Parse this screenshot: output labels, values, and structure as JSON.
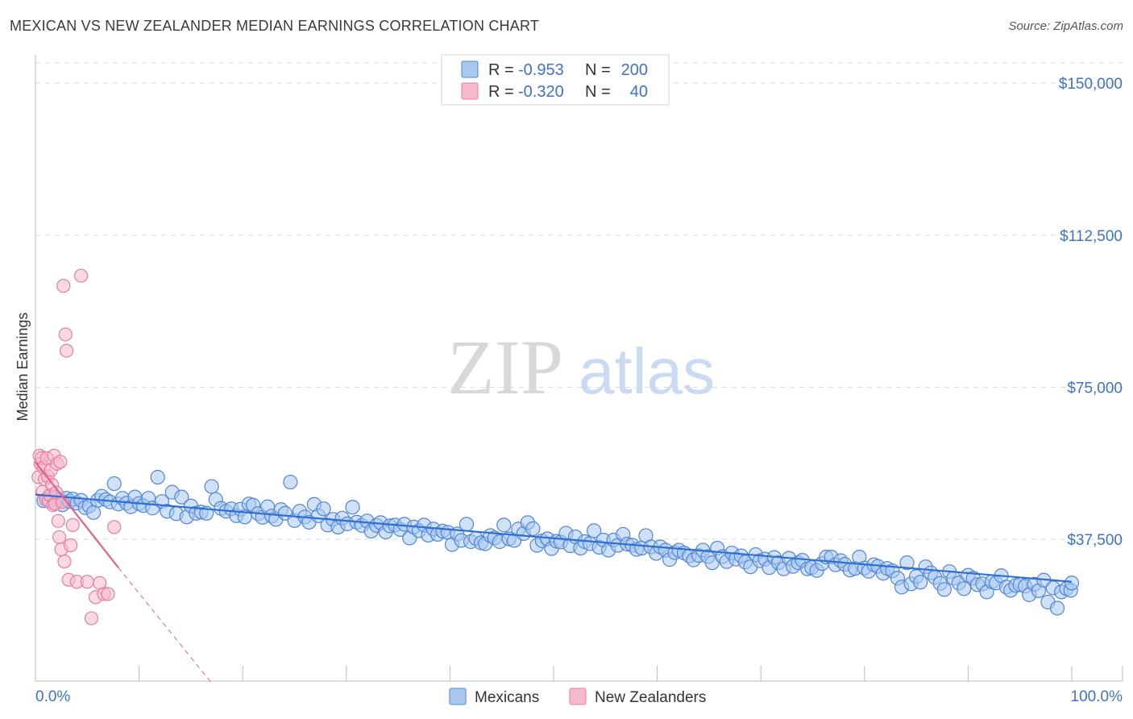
{
  "title": "MEXICAN VS NEW ZEALANDER MEDIAN EARNINGS CORRELATION CHART",
  "source": "Source: ZipAtlas.com",
  "watermark": {
    "zip": "ZIP",
    "atlas": "atlas"
  },
  "colors": {
    "mexicans_fill": "#a9c8f0",
    "mexicans_stroke": "#4f86d6",
    "mexicans_line": "#2f6fd0",
    "nz_fill": "#f7b9cc",
    "nz_stroke": "#e47ea0",
    "nz_line": "#e0628d",
    "grid": "#d9d9d9",
    "axis_label": "#3d72c9"
  },
  "legend": {
    "rows": [
      {
        "r_label": "R =",
        "r_value": "-0.953",
        "n_label": "N =",
        "n_value": "200"
      },
      {
        "r_label": "R =",
        "r_value": "-0.320",
        "n_label": "N =",
        "n_value": "40"
      }
    ]
  },
  "bottom_legend": [
    "Mexicans",
    "New Zealanders"
  ],
  "chart_data": {
    "type": "scatter",
    "title": "MEXICAN VS NEW ZEALANDER MEDIAN EARNINGS CORRELATION CHART",
    "xlabel": "",
    "ylabel": "Median Earnings",
    "xlim": [
      0,
      100
    ],
    "ylim": [
      2500,
      155000
    ],
    "x_tick_labels": [
      "0.0%",
      "100.0%"
    ],
    "y_ticks": [
      37500,
      75000,
      112500,
      150000
    ],
    "y_tick_labels": [
      "$37,500",
      "$75,000",
      "$112,500",
      "$150,000"
    ],
    "grid": true,
    "series": [
      {
        "name": "Mexicans",
        "R": -0.953,
        "N": 200,
        "trend": {
          "x": [
            0,
            100
          ],
          "y": [
            48500,
            27000
          ]
        },
        "points": [
          [
            0.8,
            47000
          ],
          [
            1.2,
            47500
          ],
          [
            1.5,
            48200
          ],
          [
            1.8,
            46500
          ],
          [
            2.0,
            47800
          ],
          [
            2.4,
            47200
          ],
          [
            2.6,
            46000
          ],
          [
            3.0,
            47600
          ],
          [
            3.3,
            46800
          ],
          [
            3.6,
            47400
          ],
          [
            4.0,
            46400
          ],
          [
            4.4,
            47100
          ],
          [
            4.8,
            45300
          ],
          [
            5.2,
            45700
          ],
          [
            5.6,
            44100
          ],
          [
            6.0,
            47100
          ],
          [
            6.4,
            48100
          ],
          [
            6.8,
            47300
          ],
          [
            7.2,
            46700
          ],
          [
            7.6,
            51200
          ],
          [
            8.0,
            46200
          ],
          [
            8.4,
            47600
          ],
          [
            8.8,
            46400
          ],
          [
            9.2,
            45500
          ],
          [
            9.6,
            47900
          ],
          [
            10.0,
            46300
          ],
          [
            10.4,
            45800
          ],
          [
            10.9,
            47600
          ],
          [
            11.3,
            45200
          ],
          [
            11.8,
            52800
          ],
          [
            12.2,
            46800
          ],
          [
            12.7,
            44400
          ],
          [
            13.2,
            49100
          ],
          [
            13.6,
            43800
          ],
          [
            14.1,
            47900
          ],
          [
            14.6,
            43000
          ],
          [
            15.0,
            45700
          ],
          [
            15.5,
            43900
          ],
          [
            16.0,
            44200
          ],
          [
            16.5,
            43900
          ],
          [
            17.0,
            50500
          ],
          [
            17.4,
            47300
          ],
          [
            17.9,
            45100
          ],
          [
            18.4,
            44400
          ],
          [
            18.9,
            45000
          ],
          [
            19.4,
            43300
          ],
          [
            19.8,
            44900
          ],
          [
            20.2,
            43000
          ],
          [
            20.6,
            46200
          ],
          [
            21.0,
            45900
          ],
          [
            21.5,
            43800
          ],
          [
            21.9,
            42900
          ],
          [
            22.4,
            45500
          ],
          [
            22.8,
            43200
          ],
          [
            23.2,
            42400
          ],
          [
            23.7,
            44800
          ],
          [
            24.1,
            43900
          ],
          [
            24.6,
            51600
          ],
          [
            25.0,
            42100
          ],
          [
            25.5,
            44400
          ],
          [
            26.0,
            43000
          ],
          [
            26.4,
            41700
          ],
          [
            26.9,
            46100
          ],
          [
            27.3,
            43300
          ],
          [
            27.8,
            45000
          ],
          [
            28.2,
            41000
          ],
          [
            28.7,
            42400
          ],
          [
            29.2,
            40500
          ],
          [
            29.6,
            42700
          ],
          [
            30.1,
            41300
          ],
          [
            30.6,
            45400
          ],
          [
            31.0,
            41700
          ],
          [
            31.5,
            40900
          ],
          [
            32.0,
            42000
          ],
          [
            32.4,
            39500
          ],
          [
            32.9,
            40900
          ],
          [
            33.3,
            41600
          ],
          [
            33.8,
            39300
          ],
          [
            34.2,
            40800
          ],
          [
            34.7,
            41000
          ],
          [
            35.2,
            39900
          ],
          [
            35.6,
            41200
          ],
          [
            36.1,
            37800
          ],
          [
            36.5,
            40500
          ],
          [
            37.0,
            39600
          ],
          [
            37.5,
            41000
          ],
          [
            37.9,
            38500
          ],
          [
            38.4,
            40000
          ],
          [
            38.8,
            38700
          ],
          [
            39.3,
            39500
          ],
          [
            39.8,
            39200
          ],
          [
            40.2,
            36200
          ],
          [
            40.7,
            38800
          ],
          [
            41.1,
            37200
          ],
          [
            41.6,
            41200
          ],
          [
            42.0,
            36900
          ],
          [
            42.5,
            37700
          ],
          [
            43.0,
            36600
          ],
          [
            43.4,
            36400
          ],
          [
            43.9,
            38400
          ],
          [
            44.3,
            37800
          ],
          [
            44.8,
            36900
          ],
          [
            45.2,
            41000
          ],
          [
            45.7,
            37600
          ],
          [
            46.2,
            37200
          ],
          [
            46.6,
            40000
          ],
          [
            47.1,
            38900
          ],
          [
            47.5,
            41600
          ],
          [
            48.0,
            40100
          ],
          [
            48.4,
            36000
          ],
          [
            48.9,
            37100
          ],
          [
            49.4,
            37600
          ],
          [
            49.8,
            35200
          ],
          [
            50.3,
            37000
          ],
          [
            50.7,
            36800
          ],
          [
            51.2,
            39000
          ],
          [
            51.6,
            35900
          ],
          [
            52.1,
            38100
          ],
          [
            52.6,
            35300
          ],
          [
            53.0,
            36900
          ],
          [
            53.5,
            36400
          ],
          [
            53.9,
            39600
          ],
          [
            54.4,
            35500
          ],
          [
            54.8,
            37300
          ],
          [
            55.3,
            34800
          ],
          [
            55.8,
            37300
          ],
          [
            56.2,
            36000
          ],
          [
            56.7,
            38700
          ],
          [
            57.1,
            36300
          ],
          [
            57.6,
            36000
          ],
          [
            58.0,
            35000
          ],
          [
            58.5,
            35300
          ],
          [
            58.9,
            38400
          ],
          [
            59.4,
            35600
          ],
          [
            59.9,
            34000
          ],
          [
            60.3,
            35600
          ],
          [
            60.8,
            34800
          ],
          [
            61.2,
            32500
          ],
          [
            61.7,
            34200
          ],
          [
            62.1,
            34800
          ],
          [
            62.6,
            34100
          ],
          [
            63.1,
            33400
          ],
          [
            63.5,
            32400
          ],
          [
            64.0,
            33500
          ],
          [
            64.4,
            34800
          ],
          [
            64.9,
            33200
          ],
          [
            65.3,
            31700
          ],
          [
            65.8,
            35300
          ],
          [
            66.3,
            33200
          ],
          [
            66.7,
            32000
          ],
          [
            67.2,
            34100
          ],
          [
            67.6,
            32600
          ],
          [
            68.1,
            33400
          ],
          [
            68.5,
            31900
          ],
          [
            69.0,
            30700
          ],
          [
            69.5,
            33700
          ],
          [
            69.9,
            32200
          ],
          [
            70.4,
            32600
          ],
          [
            70.8,
            30500
          ],
          [
            71.3,
            33000
          ],
          [
            71.7,
            31700
          ],
          [
            72.2,
            30200
          ],
          [
            72.7,
            32800
          ],
          [
            73.1,
            30800
          ],
          [
            73.6,
            31700
          ],
          [
            74.0,
            32300
          ],
          [
            74.5,
            30200
          ],
          [
            74.9,
            30500
          ],
          [
            75.4,
            29800
          ],
          [
            75.9,
            31500
          ],
          [
            76.3,
            33100
          ],
          [
            76.8,
            33100
          ],
          [
            77.2,
            31200
          ],
          [
            77.7,
            32200
          ],
          [
            78.1,
            31300
          ],
          [
            78.6,
            29900
          ],
          [
            79.1,
            30300
          ],
          [
            79.5,
            33100
          ],
          [
            80.0,
            30400
          ],
          [
            80.4,
            29600
          ],
          [
            80.9,
            31200
          ],
          [
            81.3,
            30800
          ],
          [
            81.8,
            29100
          ],
          [
            82.2,
            30300
          ],
          [
            82.7,
            29700
          ],
          [
            83.2,
            27900
          ],
          [
            83.6,
            25700
          ],
          [
            84.1,
            31700
          ],
          [
            84.5,
            26500
          ],
          [
            85.0,
            28300
          ],
          [
            85.4,
            26900
          ],
          [
            85.9,
            30700
          ],
          [
            86.4,
            29200
          ],
          [
            86.8,
            28100
          ],
          [
            87.3,
            26600
          ],
          [
            87.7,
            25100
          ],
          [
            88.2,
            29500
          ],
          [
            88.6,
            27900
          ],
          [
            89.1,
            26700
          ],
          [
            89.6,
            25300
          ],
          [
            90.0,
            28600
          ],
          [
            90.5,
            27900
          ],
          [
            90.9,
            26300
          ],
          [
            91.4,
            26500
          ],
          [
            91.8,
            24500
          ],
          [
            92.3,
            27000
          ],
          [
            92.7,
            26700
          ],
          [
            93.2,
            28500
          ],
          [
            93.7,
            25700
          ],
          [
            94.1,
            24900
          ],
          [
            94.6,
            26100
          ],
          [
            95.0,
            26300
          ],
          [
            95.5,
            25900
          ],
          [
            95.9,
            23800
          ],
          [
            96.4,
            26400
          ],
          [
            96.8,
            24800
          ],
          [
            97.3,
            27400
          ],
          [
            97.7,
            22000
          ],
          [
            98.2,
            25500
          ],
          [
            98.6,
            20500
          ],
          [
            99.0,
            24500
          ],
          [
            99.5,
            25300
          ],
          [
            99.9,
            24900
          ],
          [
            100.0,
            26700
          ]
        ]
      },
      {
        "name": "New Zealanders",
        "R": -0.32,
        "N": 40,
        "trend": {
          "x": [
            0,
            8
          ],
          "y": [
            56500,
            30500
          ],
          "dashed_to": {
            "x": 17,
            "y": 2000
          }
        },
        "points": [
          [
            0.3,
            52800
          ],
          [
            0.4,
            58100
          ],
          [
            0.5,
            56100
          ],
          [
            0.6,
            57500
          ],
          [
            0.7,
            49200
          ],
          [
            0.8,
            55200
          ],
          [
            0.9,
            52300
          ],
          [
            1.0,
            47300
          ],
          [
            1.1,
            57500
          ],
          [
            1.2,
            53000
          ],
          [
            1.3,
            46800
          ],
          [
            1.4,
            48400
          ],
          [
            1.5,
            54600
          ],
          [
            1.6,
            50900
          ],
          [
            1.7,
            45900
          ],
          [
            1.8,
            58100
          ],
          [
            1.9,
            46200
          ],
          [
            2.0,
            49000
          ],
          [
            2.1,
            56100
          ],
          [
            2.2,
            42000
          ],
          [
            2.3,
            38000
          ],
          [
            2.4,
            56600
          ],
          [
            2.5,
            35000
          ],
          [
            2.6,
            46700
          ],
          [
            2.7,
            100000
          ],
          [
            2.8,
            32000
          ],
          [
            2.9,
            88000
          ],
          [
            3.0,
            84000
          ],
          [
            3.2,
            27500
          ],
          [
            3.4,
            36000
          ],
          [
            3.6,
            41000
          ],
          [
            4.0,
            27000
          ],
          [
            4.4,
            102500
          ],
          [
            5.0,
            27000
          ],
          [
            5.4,
            18000
          ],
          [
            5.8,
            23200
          ],
          [
            6.2,
            26700
          ],
          [
            6.6,
            24000
          ],
          [
            7.0,
            24000
          ],
          [
            7.6,
            40500
          ]
        ]
      }
    ]
  }
}
